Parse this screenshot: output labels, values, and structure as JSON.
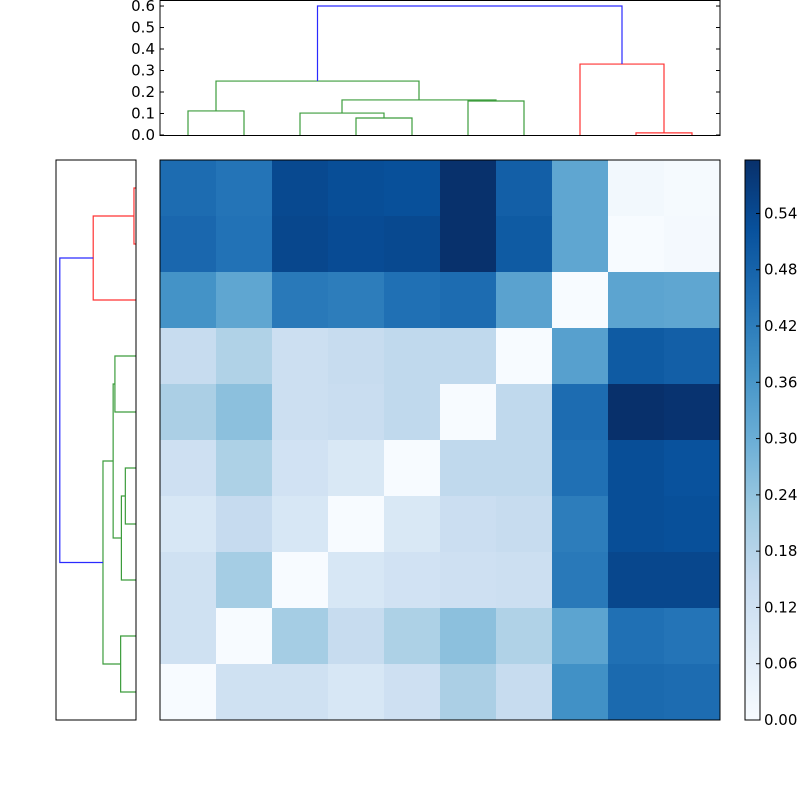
{
  "chart_data": [
    {
      "type": "heatmap",
      "rows": 10,
      "cols": 10,
      "colormap": "Blues",
      "vmin": 0.0,
      "vmax": 0.597,
      "values": [
        [
          0.46,
          0.44,
          0.54,
          0.53,
          0.525,
          0.595,
          0.49,
          0.32,
          0.015,
          0.005
        ],
        [
          0.47,
          0.445,
          0.545,
          0.535,
          0.54,
          0.595,
          0.5,
          0.32,
          0.0,
          0.01
        ],
        [
          0.37,
          0.32,
          0.43,
          0.42,
          0.45,
          0.46,
          0.33,
          0.0,
          0.325,
          0.32
        ],
        [
          0.145,
          0.19,
          0.13,
          0.145,
          0.16,
          0.16,
          0.0,
          0.335,
          0.5,
          0.49
        ],
        [
          0.2,
          0.25,
          0.13,
          0.14,
          0.16,
          0.0,
          0.16,
          0.46,
          0.6,
          0.59
        ],
        [
          0.125,
          0.195,
          0.115,
          0.09,
          0.0,
          0.16,
          0.16,
          0.45,
          0.53,
          0.52
        ],
        [
          0.095,
          0.15,
          0.095,
          0.0,
          0.09,
          0.135,
          0.145,
          0.42,
          0.53,
          0.525
        ],
        [
          0.12,
          0.21,
          0.0,
          0.095,
          0.115,
          0.125,
          0.13,
          0.43,
          0.545,
          0.545
        ],
        [
          0.12,
          0.0,
          0.21,
          0.145,
          0.195,
          0.25,
          0.19,
          0.325,
          0.45,
          0.44
        ],
        [
          0.0,
          0.12,
          0.12,
          0.095,
          0.125,
          0.2,
          0.145,
          0.375,
          0.465,
          0.46
        ]
      ],
      "colorbar": {
        "ticks": [
          "0.00",
          "0.06",
          "0.12",
          "0.18",
          "0.24",
          "0.30",
          "0.36",
          "0.42",
          "0.48",
          "0.54"
        ]
      }
    },
    {
      "type": "dendrogram",
      "orientation": "top",
      "leaf_count": 10,
      "ylim": [
        0,
        0.628
      ],
      "ticks": [
        "0.0",
        "0.1",
        "0.2",
        "0.3",
        "0.4",
        "0.5",
        "0.6"
      ],
      "merges": [
        {
          "children": [
            3,
            4
          ],
          "height": 0.079,
          "color": "green"
        },
        {
          "children": [
            2,
            10
          ],
          "height": 0.102,
          "color": "green"
        },
        {
          "children": [
            0,
            1
          ],
          "height": 0.112,
          "color": "green"
        },
        {
          "children": [
            5,
            6
          ],
          "height": 0.158,
          "color": "green"
        },
        {
          "children": [
            11,
            13
          ],
          "height": 0.163,
          "color": "green"
        },
        {
          "children": [
            12,
            14
          ],
          "height": 0.251,
          "color": "green"
        },
        {
          "children": [
            8,
            9
          ],
          "height": 0.01,
          "color": "red"
        },
        {
          "children": [
            7,
            16
          ],
          "height": 0.33,
          "color": "red"
        },
        {
          "children": [
            15,
            17
          ],
          "height": 0.6,
          "color": "blue"
        }
      ]
    },
    {
      "type": "dendrogram",
      "orientation": "left",
      "leaf_count": 10,
      "xlim": [
        0.63,
        0
      ],
      "merges": [
        {
          "children": [
            0,
            1
          ],
          "height": 0.016,
          "color": "red"
        },
        {
          "children": [
            10,
            2
          ],
          "height": 0.337,
          "color": "red"
        },
        {
          "children": [
            5,
            6
          ],
          "height": 0.084,
          "color": "green"
        },
        {
          "children": [
            12,
            7
          ],
          "height": 0.115,
          "color": "green"
        },
        {
          "children": [
            3,
            4
          ],
          "height": 0.166,
          "color": "green"
        },
        {
          "children": [
            14,
            13
          ],
          "height": 0.18,
          "color": "green"
        },
        {
          "children": [
            8,
            9
          ],
          "height": 0.121,
          "color": "green"
        },
        {
          "children": [
            15,
            16
          ],
          "height": 0.26,
          "color": "green"
        },
        {
          "children": [
            11,
            17
          ],
          "height": 0.6,
          "color": "blue"
        }
      ]
    }
  ],
  "colors": {
    "green": "#3c9c3c",
    "red": "#ff3333",
    "blue": "#2a2aff"
  }
}
